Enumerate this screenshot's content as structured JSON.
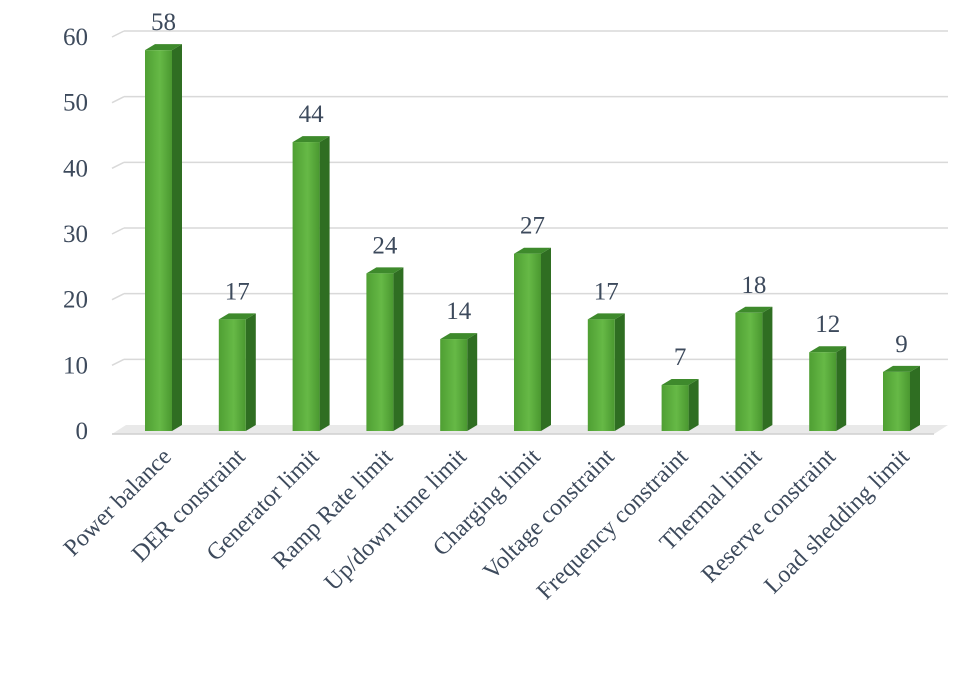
{
  "chart_data": {
    "type": "bar",
    "style": "3d-column",
    "categories": [
      "Power balance",
      "DER constraint",
      "Generator limit",
      "Ramp Rate limit",
      "Up/down time limit",
      "Charging limit",
      "Voltage constraint",
      "Frequency constraint",
      "Thermal limit",
      "Reserve constraint",
      "Load shedding limit"
    ],
    "values": [
      58,
      17,
      44,
      24,
      14,
      27,
      17,
      7,
      18,
      12,
      9
    ],
    "ylim": [
      0,
      60
    ],
    "yticks": [
      0,
      10,
      20,
      30,
      40,
      50,
      60
    ],
    "grid": true,
    "legend": "none",
    "data_labels": true,
    "colors": {
      "bar_front": "#5aae3c",
      "bar_side": "#2f6e22",
      "bar_top": "#3e8a2c",
      "floor": "#e6e6e6",
      "text": "#3d4a5c"
    }
  }
}
